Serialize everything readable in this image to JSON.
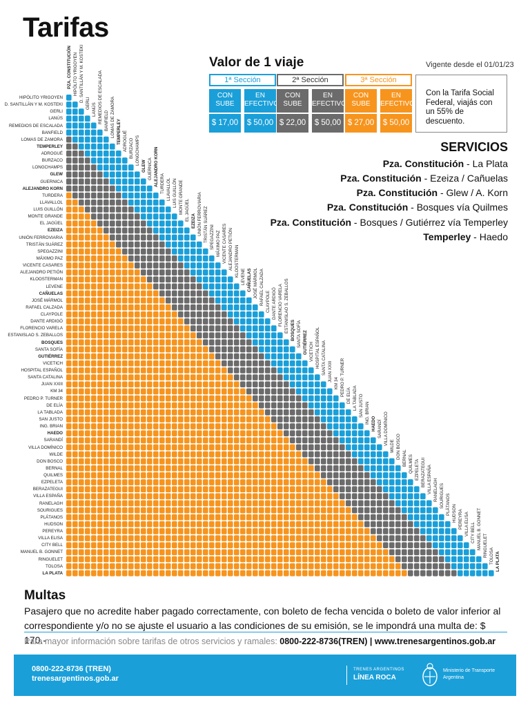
{
  "page_title": "Tarifas",
  "valor": "Valor de 1 viaje",
  "vigente": "Vigente desde el 01/01/23",
  "colors": {
    "s1": "#1a9fd9",
    "s2": "#6b6b6b",
    "s3": "#f7941d"
  },
  "fares": [
    {
      "seccion": "1ª Sección",
      "con_sube": "CON SUBE",
      "efectivo": "EN EFECTIVO",
      "price_sube": "$ 17,00",
      "price_efectivo": "$ 50,00"
    },
    {
      "seccion": "2ª Sección",
      "con_sube": "CON SUBE",
      "efectivo": "EN EFECTIVO",
      "price_sube": "$ 22,00",
      "price_efectivo": "$ 50,00"
    },
    {
      "seccion": "3ª Sección",
      "con_sube": "CON SUBE",
      "efectivo": "EN EFECTIVO",
      "price_sube": "$ 27,00",
      "price_efectivo": "$ 50,00"
    }
  ],
  "tarifa_social": "Con la Tarifa Social Federal, viajás con un 55% de descuento.",
  "servicios_title": "SERVICIOS",
  "servicios": [
    {
      "from": "Pza. Constitución",
      "to": " - La Plata"
    },
    {
      "from": "Pza. Constitución",
      "to": " - Ezeiza / Cañuelas"
    },
    {
      "from": "Pza. Constitución",
      "to": " - Glew / A. Korn"
    },
    {
      "from": "Pza. Constitución",
      "to": " - Bosques vía Quilmes"
    },
    {
      "from": "Pza. Constitución",
      "to": " - Bosques / Gutiérrez vía Temperley"
    },
    {
      "from": "Temperley",
      "to": " - Haedo"
    }
  ],
  "stations": [
    "PZA. CONSTITUCIÓN",
    "HIPÓLITO YRIGOYEN",
    "D. SANTILLÁN Y M. KOSTEKI",
    "GERLI",
    "LANÚS",
    "REMEDIOS DE ESCALADA",
    "BANFIELD",
    "LOMAS DE ZAMORA",
    "TEMPERLEY",
    "ADROGUÉ",
    "BURZACO",
    "LONGCHAMPS",
    "GLEW",
    "GUERNICA",
    "ALEJANDRO KORN",
    "TURDERA",
    "LLAVALLOL",
    "LUIS GUILLÓN",
    "MONTE GRANDE",
    "EL JAGÜEL",
    "EZEIZA",
    "UNIÓN FERROVIARIA",
    "TRISTÁN SUÁREZ",
    "SPEGAZZINI",
    "MÁXIMO PAZ",
    "VICENTE CASARES",
    "ALEJANDRO PETIÓN",
    "KLOOSTERMAN",
    "LEVENE",
    "CAÑUELAS",
    "JOSÉ MÁRMOL",
    "RAFAEL CALZADA",
    "CLAYPOLE",
    "DANTE ARDIGÓ",
    "FLORENCIO VARELA",
    "ESTANISLAO S. ZEBALLOS",
    "BOSQUES",
    "SANTA SOFÍA",
    "GUTIÉRREZ",
    "VICETICH",
    "HOSPITAL ESPAÑOL",
    "SANTA CATALINA",
    "JUAN XXIII",
    "KM 34",
    "PEDRO P. TURNER",
    "DE ELÍA",
    "LA TABLADA",
    "SAN JUSTO",
    "ING. BRIAN",
    "HAEDO",
    "SARANDÍ",
    "VILLA DOMÍNICO",
    "WILDE",
    "DON BOSCO",
    "BERNAL",
    "QUILMES",
    "EZPELETA",
    "BERAZATEGUI",
    "VILLA ESPAÑA",
    "RANELAGH",
    "SOURIGUES",
    "PLÁTANOS",
    "HUDSON",
    "PEREYRA",
    "VILLA ELISA",
    "CITY BELL",
    "MANUEL B. GONNET",
    "RINGUELET",
    "TOLOSA",
    "LA PLATA"
  ],
  "bold_stations": [
    "PZA. CONSTITUCIÓN",
    "TEMPERLEY",
    "GLEW",
    "ALEJANDRO KORN",
    "EZEIZA",
    "CAÑUELAS",
    "BOSQUES",
    "GUTIÉRREZ",
    "HAEDO",
    "LA PLATA"
  ],
  "multas_title": "Multas",
  "multas_text": "Pasajero que no acredite haber pagado correctamente, con boleto de fecha vencida o boleto de valor inferior al correspondiente y/o no se ajuste el usuario a las condiciones de su emisión, se le impondrá una multa de: $ 170.-",
  "info_prefix": "Para mayor información sobre tarifas de otros servicios y ramales: ",
  "info_contact": "0800-222-8736(TREN) | www.trenesargentinos.gob.ar",
  "footer": {
    "phone": "0800-222-8736 (TREN)",
    "web": "trenesargentinos.gob.ar",
    "brand_top": "TRENES ARGENTINOS",
    "brand_line": "LÍNEA ROCA",
    "ministry": "Ministerio de Transporte",
    "country": "Argentina"
  }
}
